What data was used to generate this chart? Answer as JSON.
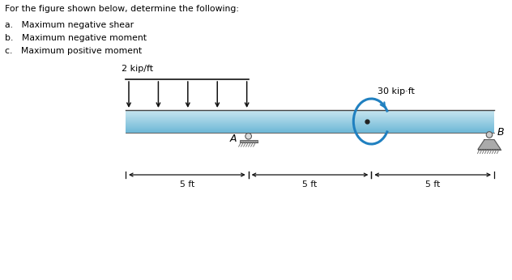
{
  "title_text": "For the figure shown below, determine the following:",
  "items": [
    "a.   Maximum negative shear",
    "b.   Maximum negative moment",
    "c.   Maximum positive moment"
  ],
  "load_label": "2 kip/ft",
  "moment_label": "30 kip·ft",
  "point_A_label": "A",
  "point_B_label": "B",
  "span_labels": [
    "–5 ft—",
    "–5 ft—",
    "–5 ft—"
  ],
  "span_text": [
    "5 ft",
    "5 ft",
    "5 ft"
  ],
  "beam_color_top": "#c8e8f0",
  "beam_color_bot": "#3a8fb5",
  "bg_color": "#ffffff",
  "text_color": "#000000",
  "moment_arrow_color": "#2080c0",
  "load_arrow_color": "#111111",
  "support_color": "#888888",
  "dim_color": "#111111"
}
